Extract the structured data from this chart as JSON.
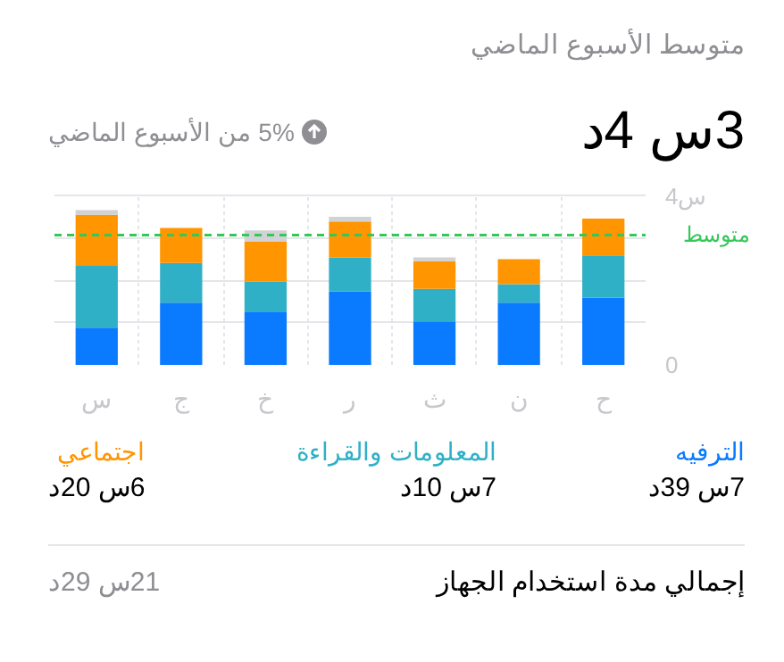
{
  "chart_data": {
    "type": "bar",
    "title": "متوسط الأسبوع الماضي",
    "subtitle": "3س 4د",
    "categories": [
      "س",
      "ج",
      "خ",
      "ر",
      "ث",
      "ن",
      "ح"
    ],
    "stacked": true,
    "series": [
      {
        "name": "الترفيه",
        "color": "#0a7aff",
        "values": [
          0.88,
          1.47,
          1.26,
          1.74,
          1.03,
          1.47,
          1.59
        ]
      },
      {
        "name": "المعلومات والقراءة",
        "color": "#30b0c7",
        "values": [
          1.46,
          0.94,
          0.71,
          0.8,
          0.77,
          0.44,
          1.0
        ]
      },
      {
        "name": "اجتماعي",
        "color": "#ff9500",
        "values": [
          1.21,
          0.83,
          0.94,
          0.85,
          0.65,
          0.59,
          0.87
        ]
      },
      {
        "color": "#d1d1d6",
        "values": [
          0.11,
          0,
          0.27,
          0.11,
          0.09,
          0,
          0
        ]
      }
    ],
    "ylim": [
      0,
      4.05
    ],
    "yticks": [
      0,
      {
        "value": 1,
        "label": null
      },
      {
        "value": 2,
        "label": null
      },
      {
        "value": 3,
        "label": null
      },
      {
        "value": 4,
        "label": "4س"
      }
    ],
    "grid": true,
    "legend": "bottom",
    "ref_lines": [
      {
        "axis": "y",
        "value": 3.07,
        "label": "متوسط",
        "color": "#34c759",
        "line_style": "dashed"
      }
    ],
    "annotations": [
      "5% من الأسبوع الماضي",
      "7س 39د",
      "7س 10د",
      "6س 20د",
      "إجمالي مدة استخدام الجهاز",
      "21س 29د"
    ]
  }
}
